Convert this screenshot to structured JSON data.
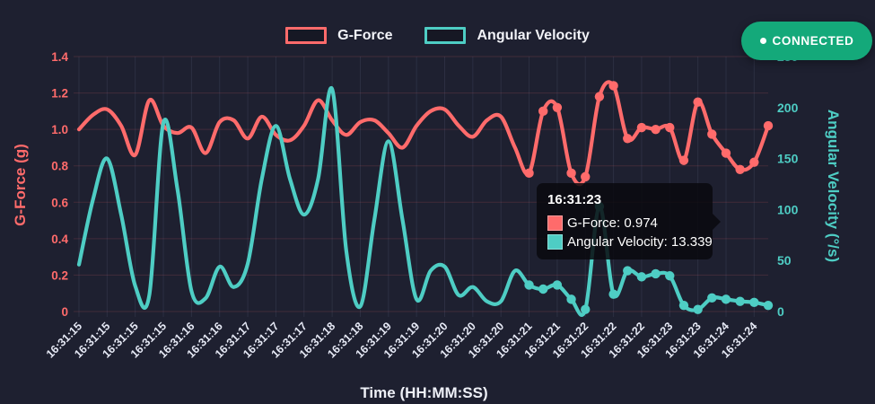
{
  "colors": {
    "background": "#1e2030",
    "gforce": "#ff6b6b",
    "angular": "#4ecdc4",
    "badge_green": "#14a97a",
    "grid_horizontal": "rgba(255,107,107,0.16)",
    "grid_vertical": "rgba(150,160,200,0.12)",
    "xtick_text": "#e6e9f5"
  },
  "legend": [
    {
      "label": "G-Force",
      "color": "#ff6b6b"
    },
    {
      "label": "Angular Velocity",
      "color": "#4ecdc4"
    }
  ],
  "status": {
    "label": "CONNECTED",
    "dot_icon": "bullet"
  },
  "tooltip": {
    "title": "16:31:23",
    "rows": [
      {
        "label": "G-Force",
        "value": "0.974",
        "text": "G-Force: 0.974",
        "color": "#ff6b6b"
      },
      {
        "label": "Angular Velocity",
        "value": "13.339",
        "text": "Angular Velocity: 13.339",
        "color": "#4ecdc4"
      }
    ]
  },
  "chart_data": {
    "type": "line",
    "xlabel": "Time (HH:MM:SS)",
    "x_tick_labels": [
      "16:31:15",
      "16:31:15",
      "16:31:15",
      "16:31:15",
      "16:31:16",
      "16:31:16",
      "16:31:17",
      "16:31:17",
      "16:31:17",
      "16:31:18",
      "16:31:18",
      "16:31:19",
      "16:31:19",
      "16:31:20",
      "16:31:20",
      "16:31:20",
      "16:31:21",
      "16:31:21",
      "16:31:22",
      "16:31:22",
      "16:31:22",
      "16:31:23",
      "16:31:23",
      "16:31:24",
      "16:31:24"
    ],
    "x_ticks_every_n_points": 2,
    "y_left": {
      "label": "G-Force (g)",
      "ticks": [
        "1.4",
        "1.2",
        "1.0",
        "0.8",
        "0.6",
        "0.4",
        "0.2",
        "0"
      ],
      "range": [
        0,
        1.4
      ],
      "color": "#ff6b6b"
    },
    "y_right": {
      "label": "Angular Velocity (°/s)",
      "ticks": [
        "250",
        "200",
        "150",
        "100",
        "50",
        "0"
      ],
      "range": [
        0,
        250
      ],
      "color": "#4ecdc4"
    },
    "grid": true,
    "legend_position": "top-center",
    "markers_from_index": 32,
    "series": [
      {
        "name": "G-Force",
        "axis": "left",
        "color": "#ff6b6b",
        "values": [
          1.0,
          1.08,
          1.11,
          1.02,
          0.86,
          1.16,
          1.02,
          0.98,
          1.01,
          0.87,
          1.04,
          1.05,
          0.95,
          1.07,
          0.97,
          0.94,
          1.02,
          1.16,
          1.05,
          0.97,
          1.04,
          1.05,
          0.98,
          0.9,
          1.02,
          1.1,
          1.11,
          1.02,
          0.96,
          1.05,
          1.07,
          0.9,
          0.76,
          1.1,
          1.12,
          0.76,
          0.74,
          1.18,
          1.24,
          0.95,
          1.01,
          1.0,
          1.01,
          0.83,
          1.15,
          0.974,
          0.87,
          0.78,
          0.82,
          1.02
        ]
      },
      {
        "name": "Angular Velocity",
        "axis": "right",
        "color": "#4ecdc4",
        "values": [
          46,
          110,
          150,
          95,
          25,
          16,
          185,
          120,
          20,
          13,
          44,
          24,
          47,
          130,
          182,
          130,
          95,
          130,
          218,
          60,
          5,
          90,
          167,
          90,
          12,
          40,
          44,
          16,
          24,
          10,
          10,
          40,
          26,
          22,
          26,
          12,
          2,
          103,
          17,
          40,
          34,
          37,
          35,
          6,
          2,
          13.339,
          12,
          10,
          9,
          6
        ]
      }
    ],
    "hover_index": 45
  }
}
